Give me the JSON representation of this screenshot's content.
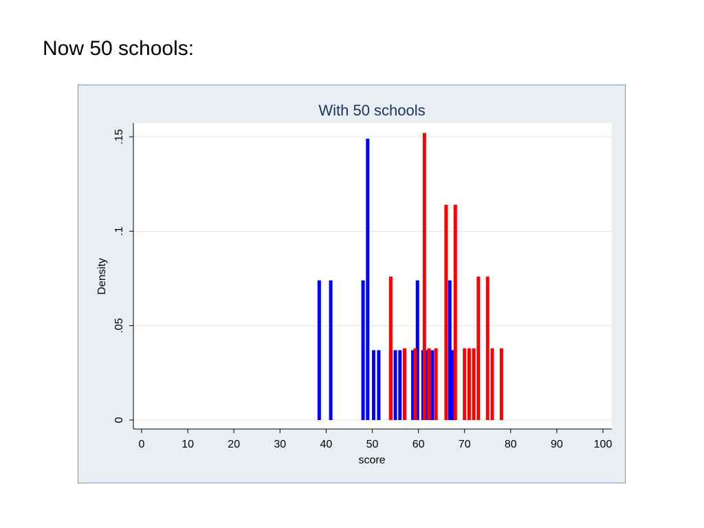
{
  "slide": {
    "title": "Now 50 schools:"
  },
  "chart_data": {
    "type": "bar",
    "title": "With 50 schools",
    "xlabel": "score",
    "ylabel": "Density",
    "xlim": [
      0,
      100
    ],
    "ylim": [
      0,
      0.15
    ],
    "x_ticks": [
      0,
      10,
      20,
      30,
      40,
      50,
      60,
      70,
      80,
      90,
      100
    ],
    "x_tick_labels": [
      "0",
      "10",
      "20",
      "30",
      "40",
      "50",
      "60",
      "70",
      "80",
      "90",
      "100"
    ],
    "y_ticks": [
      0,
      0.05,
      0.1,
      0.15
    ],
    "y_tick_labels": [
      "0",
      ".05",
      ".1",
      ".15"
    ],
    "grid": true,
    "series": [
      {
        "color": "#0000ff",
        "points": [
          {
            "x": 38.5,
            "y": 0.074
          },
          {
            "x": 41,
            "y": 0.074
          },
          {
            "x": 48,
            "y": 0.074
          },
          {
            "x": 49,
            "y": 0.149
          },
          {
            "x": 50.3,
            "y": 0.037
          },
          {
            "x": 51.4,
            "y": 0.037
          },
          {
            "x": 54,
            "y": 0.037
          },
          {
            "x": 55,
            "y": 0.037
          },
          {
            "x": 56,
            "y": 0.037
          },
          {
            "x": 58.8,
            "y": 0.037
          },
          {
            "x": 59.8,
            "y": 0.074
          },
          {
            "x": 61,
            "y": 0.037
          },
          {
            "x": 62,
            "y": 0.037
          },
          {
            "x": 63,
            "y": 0.037
          },
          {
            "x": 66.8,
            "y": 0.074
          },
          {
            "x": 67.3,
            "y": 0.037
          }
        ]
      },
      {
        "color": "#ff0000",
        "points": [
          {
            "x": 54,
            "y": 0.076
          },
          {
            "x": 57,
            "y": 0.038
          },
          {
            "x": 59.3,
            "y": 0.038
          },
          {
            "x": 61.3,
            "y": 0.152
          },
          {
            "x": 62.3,
            "y": 0.038
          },
          {
            "x": 63.8,
            "y": 0.038
          },
          {
            "x": 66,
            "y": 0.114
          },
          {
            "x": 68,
            "y": 0.114
          },
          {
            "x": 70,
            "y": 0.038
          },
          {
            "x": 71,
            "y": 0.038
          },
          {
            "x": 72,
            "y": 0.038
          },
          {
            "x": 73,
            "y": 0.076
          },
          {
            "x": 75,
            "y": 0.076
          },
          {
            "x": 76,
            "y": 0.038
          },
          {
            "x": 78,
            "y": 0.038
          }
        ]
      }
    ]
  }
}
